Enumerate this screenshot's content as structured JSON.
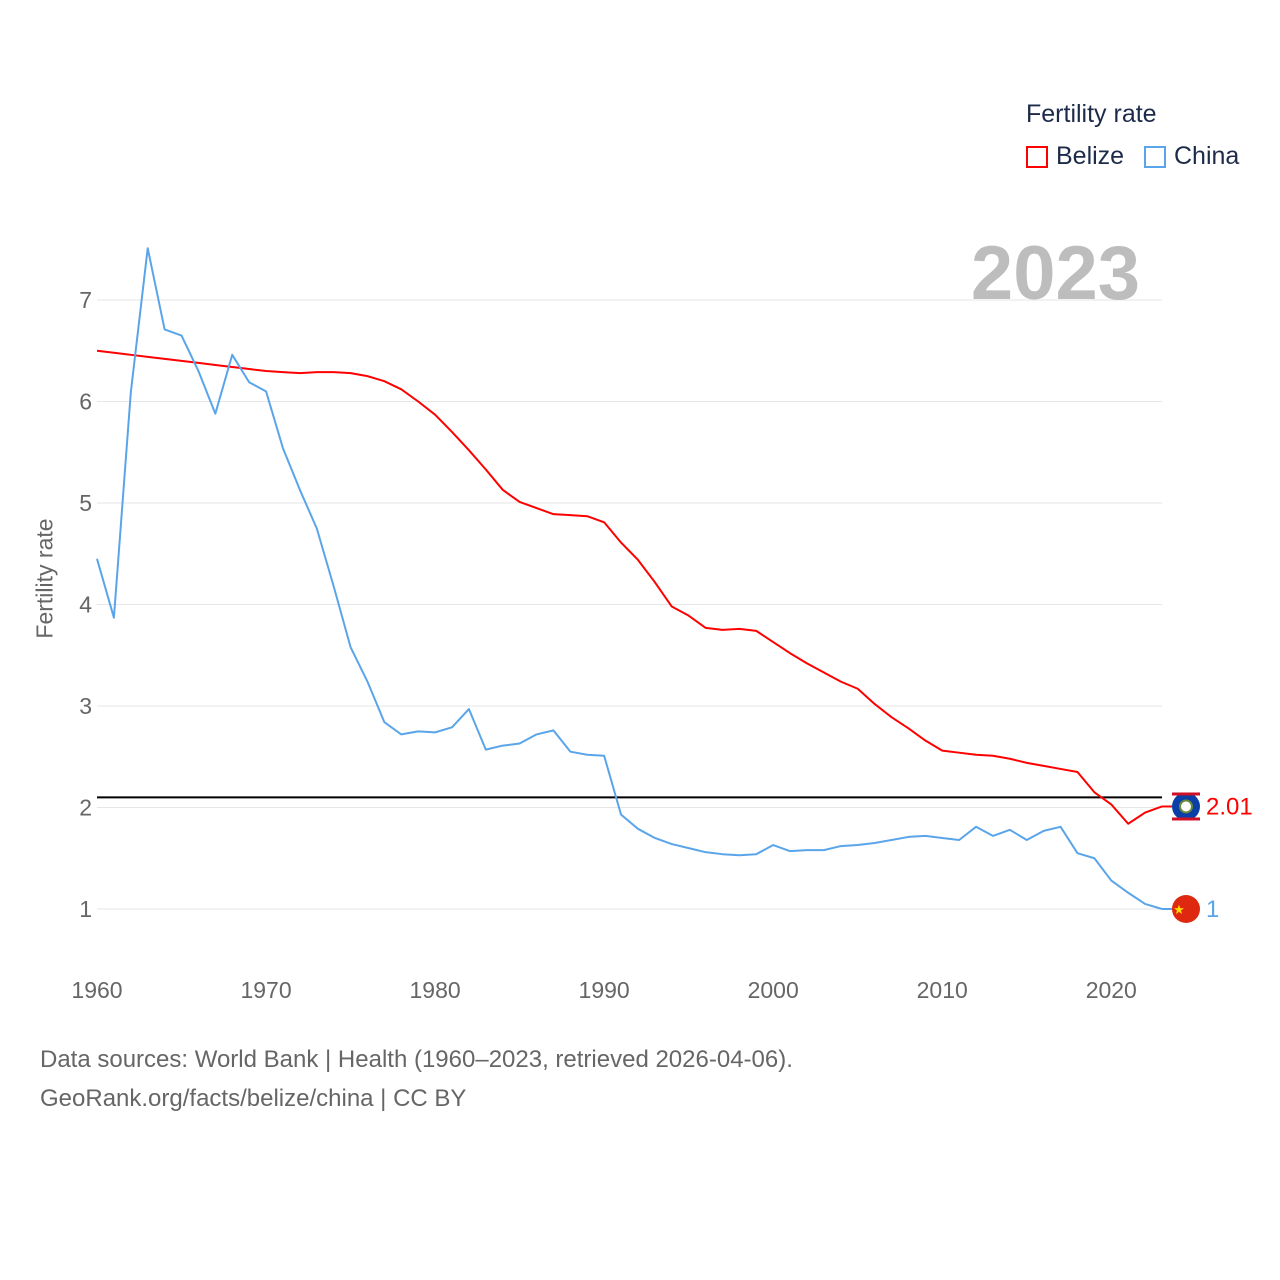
{
  "chart_data": {
    "type": "line",
    "ylabel": "Fertility rate",
    "legend_title": "Fertility rate",
    "legend_position": "top-right",
    "current_year": "2023",
    "x": [
      1960,
      1961,
      1962,
      1963,
      1964,
      1965,
      1966,
      1967,
      1968,
      1969,
      1970,
      1971,
      1972,
      1973,
      1974,
      1975,
      1976,
      1977,
      1978,
      1979,
      1980,
      1981,
      1982,
      1983,
      1984,
      1985,
      1986,
      1987,
      1988,
      1989,
      1990,
      1991,
      1992,
      1993,
      1994,
      1995,
      1996,
      1997,
      1998,
      1999,
      2000,
      2001,
      2002,
      2003,
      2004,
      2005,
      2006,
      2007,
      2008,
      2009,
      2010,
      2011,
      2012,
      2013,
      2014,
      2015,
      2016,
      2017,
      2018,
      2019,
      2020,
      2021,
      2022,
      2023
    ],
    "xticks": [
      "1960",
      "1970",
      "1980",
      "1990",
      "2000",
      "2010",
      "2020"
    ],
    "yticks": [
      "1",
      "2",
      "3",
      "4",
      "5",
      "6",
      "7"
    ],
    "xlim": [
      1960,
      2023
    ],
    "ylim": [
      0.5,
      7.5
    ],
    "reference_line": 2.1,
    "series": [
      {
        "name": "Belize",
        "color": "#ff0000",
        "end_label": "2.01",
        "values": [
          6.5,
          6.48,
          6.46,
          6.44,
          6.42,
          6.4,
          6.38,
          6.36,
          6.34,
          6.32,
          6.3,
          6.29,
          6.28,
          6.29,
          6.29,
          6.28,
          6.25,
          6.2,
          6.12,
          6.0,
          5.87,
          5.7,
          5.52,
          5.33,
          5.13,
          5.01,
          4.95,
          4.89,
          4.88,
          4.87,
          4.81,
          4.61,
          4.44,
          4.22,
          3.98,
          3.89,
          3.77,
          3.75,
          3.76,
          3.74,
          3.63,
          3.52,
          3.42,
          3.33,
          3.24,
          3.17,
          3.02,
          2.89,
          2.78,
          2.66,
          2.56,
          2.54,
          2.52,
          2.51,
          2.48,
          2.44,
          2.41,
          2.38,
          2.35,
          2.15,
          2.03,
          1.84,
          1.95,
          2.01
        ]
      },
      {
        "name": "China",
        "color": "#5aa5ea",
        "end_label": "1",
        "values": [
          4.45,
          3.87,
          6.09,
          7.51,
          6.71,
          6.65,
          6.3,
          5.88,
          6.46,
          6.19,
          6.1,
          5.54,
          5.13,
          4.75,
          4.18,
          3.58,
          3.24,
          2.84,
          2.72,
          2.75,
          2.74,
          2.79,
          2.97,
          2.57,
          2.61,
          2.63,
          2.72,
          2.76,
          2.55,
          2.52,
          2.51,
          1.93,
          1.79,
          1.7,
          1.64,
          1.6,
          1.56,
          1.54,
          1.53,
          1.54,
          1.63,
          1.57,
          1.58,
          1.58,
          1.62,
          1.63,
          1.65,
          1.68,
          1.71,
          1.72,
          1.7,
          1.68,
          1.81,
          1.72,
          1.78,
          1.68,
          1.77,
          1.81,
          1.55,
          1.5,
          1.28,
          1.16,
          1.05,
          1.0
        ]
      }
    ]
  },
  "footer": {
    "line1": "Data sources: World Bank | Health (1960–2023, retrieved 2026-04-06).",
    "line2": "GeoRank.org/facts/belize/china | CC BY"
  }
}
